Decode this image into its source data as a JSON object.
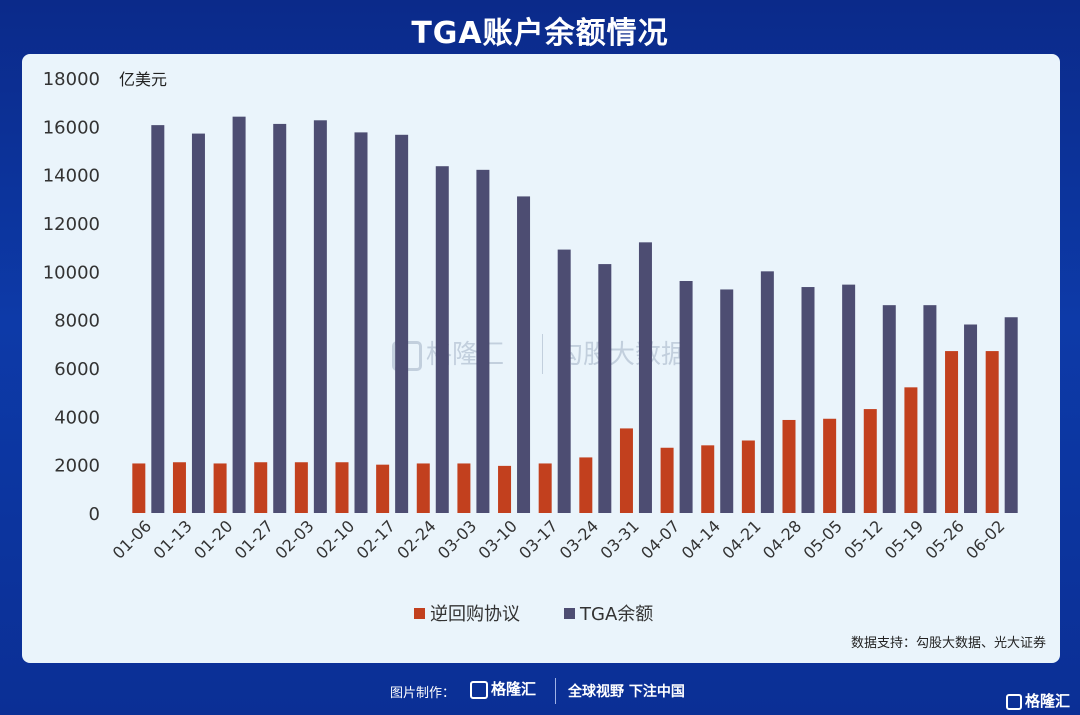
{
  "title": "TGA账户余额情况",
  "source_note": "数据支持：勾股大数据、光大证券",
  "watermark": {
    "left_brand": "格隆汇",
    "right_brand": "勾股大数据"
  },
  "footer": {
    "credit": "图片制作：",
    "brand": "格隆汇",
    "slogan": "全球视野 下注中国",
    "corner_brand": "格隆汇"
  },
  "colors": {
    "repo": "#c2401e",
    "tga": "#4d4d72",
    "panel": "#eaf4fb"
  },
  "chart_data": {
    "type": "bar",
    "unit_label": "亿美元",
    "ylim": [
      0,
      18000
    ],
    "yticks": [
      0,
      2000,
      4000,
      6000,
      8000,
      10000,
      12000,
      14000,
      16000,
      18000
    ],
    "grid": false,
    "legend_position": "bottom",
    "categories": [
      "01-06",
      "01-13",
      "01-20",
      "01-27",
      "02-03",
      "02-10",
      "02-17",
      "02-24",
      "03-03",
      "03-10",
      "03-17",
      "03-24",
      "03-31",
      "04-07",
      "04-14",
      "04-21",
      "04-28",
      "05-05",
      "05-12",
      "05-19",
      "05-26",
      "06-02"
    ],
    "series": [
      {
        "name": "逆回购协议",
        "color": "#c2401e",
        "values": [
          2050,
          2100,
          2050,
          2100,
          2100,
          2100,
          2000,
          2050,
          2050,
          1950,
          2050,
          2300,
          3500,
          2700,
          2800,
          3000,
          3850,
          3900,
          4300,
          5200,
          6700,
          6700
        ]
      },
      {
        "name": "TGA余额",
        "color": "#4d4d72",
        "values": [
          16050,
          15700,
          16400,
          16100,
          16250,
          15750,
          15650,
          14350,
          14200,
          13100,
          10900,
          10300,
          11200,
          9600,
          9250,
          10000,
          9350,
          9450,
          8600,
          8600,
          7800,
          8100
        ]
      }
    ]
  }
}
